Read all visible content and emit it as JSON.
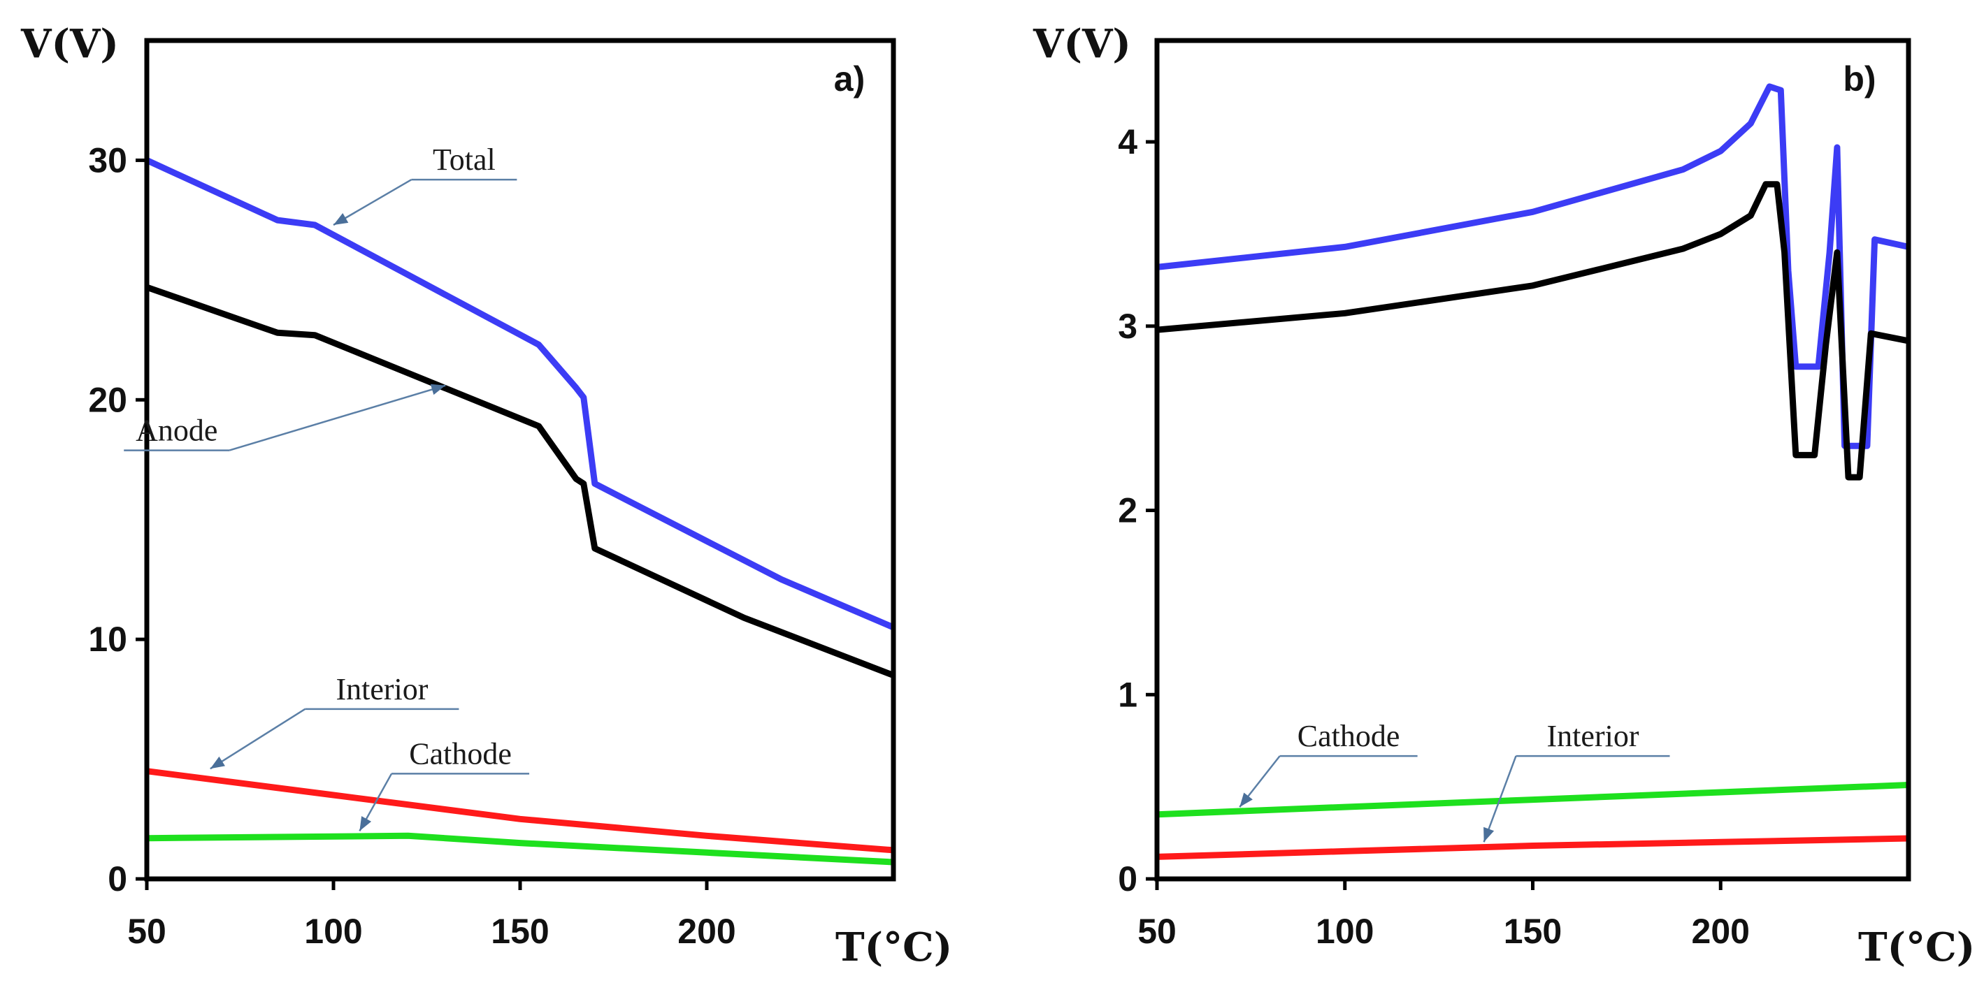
{
  "chart_data": [
    {
      "type": "line",
      "panel_label": "a)",
      "xlabel": "T(°C)",
      "ylabel": "V(V)",
      "xlim": [
        50,
        250
      ],
      "ylim": [
        0,
        35
      ],
      "x_ticks": [
        50,
        100,
        150,
        200
      ],
      "y_ticks": [
        0,
        10,
        20,
        30
      ],
      "series": [
        {
          "name": "Total",
          "color": "#3c3cf5",
          "x": [
            50,
            85,
            95,
            155,
            165,
            167,
            170,
            220,
            250
          ],
          "y": [
            30,
            27.5,
            27.3,
            22.3,
            20.5,
            20.1,
            16.5,
            12.5,
            10.5
          ]
        },
        {
          "name": "Anode",
          "color": "#000000",
          "x": [
            50,
            85,
            95,
            155,
            165,
            167,
            170,
            210,
            250
          ],
          "y": [
            24.7,
            22.8,
            22.7,
            18.9,
            16.7,
            16.5,
            13.8,
            10.9,
            8.5
          ]
        },
        {
          "name": "Interior",
          "color": "#ff1a1a",
          "x": [
            50,
            100,
            150,
            200,
            250
          ],
          "y": [
            4.5,
            3.5,
            2.5,
            1.8,
            1.2
          ]
        },
        {
          "name": "Cathode",
          "color": "#1ee01e",
          "x": [
            50,
            120,
            150,
            200,
            250
          ],
          "y": [
            1.7,
            1.8,
            1.5,
            1.1,
            0.7
          ]
        }
      ],
      "annotations": [
        {
          "text": "Total",
          "series": "Total",
          "target": [
            100,
            27.3
          ],
          "label_at": [
            135,
            29.6
          ]
        },
        {
          "text": "Anode",
          "series": "Anode",
          "target": [
            130,
            20.6
          ],
          "label_at": [
            58,
            18.3
          ]
        },
        {
          "text": "Interior",
          "series": "Interior",
          "target": [
            67,
            4.6
          ],
          "label_at": [
            113,
            7.5
          ]
        },
        {
          "text": "Cathode",
          "series": "Cathode",
          "target": [
            107,
            2.0
          ],
          "label_at": [
            134,
            4.8
          ]
        }
      ]
    },
    {
      "type": "line",
      "panel_label": "b)",
      "xlabel": "T(°C)",
      "ylabel": "V(V)",
      "xlim": [
        50,
        250
      ],
      "ylim": [
        0,
        4.55
      ],
      "x_ticks": [
        50,
        100,
        150,
        200
      ],
      "y_ticks": [
        0,
        1,
        2,
        3,
        4
      ],
      "series": [
        {
          "name": "Total",
          "color": "#3c3cf5",
          "x": [
            50,
            100,
            150,
            190,
            200,
            208,
            213,
            216,
            218,
            220,
            223,
            226,
            229,
            231,
            233,
            236,
            239,
            241,
            250
          ],
          "y": [
            3.32,
            3.43,
            3.62,
            3.85,
            3.95,
            4.1,
            4.3,
            4.28,
            3.3,
            2.78,
            2.78,
            2.78,
            3.4,
            3.97,
            2.35,
            2.35,
            2.35,
            3.47,
            3.43
          ]
        },
        {
          "name": "Anode",
          "color": "#000000",
          "x": [
            50,
            100,
            150,
            190,
            200,
            208,
            212,
            215,
            217,
            220,
            225,
            228,
            231,
            234,
            237,
            240,
            250
          ],
          "y": [
            2.98,
            3.07,
            3.22,
            3.42,
            3.5,
            3.6,
            3.77,
            3.77,
            3.4,
            2.3,
            2.3,
            2.9,
            3.4,
            2.18,
            2.18,
            2.96,
            2.92
          ]
        },
        {
          "name": "Cathode",
          "color": "#1ee01e",
          "x": [
            50,
            100,
            150,
            200,
            250
          ],
          "y": [
            0.35,
            0.39,
            0.43,
            0.47,
            0.51
          ]
        },
        {
          "name": "Interior",
          "color": "#ff1a1a",
          "x": [
            50,
            100,
            150,
            200,
            250
          ],
          "y": [
            0.12,
            0.15,
            0.18,
            0.2,
            0.22
          ]
        }
      ],
      "annotations": [
        {
          "text": "Cathode",
          "series": "Cathode",
          "target": [
            72,
            0.39
          ],
          "label_at": [
            101,
            0.72
          ]
        },
        {
          "text": "Interior",
          "series": "Interior",
          "target": [
            137,
            0.2
          ],
          "label_at": [
            166,
            0.72
          ]
        }
      ]
    }
  ]
}
